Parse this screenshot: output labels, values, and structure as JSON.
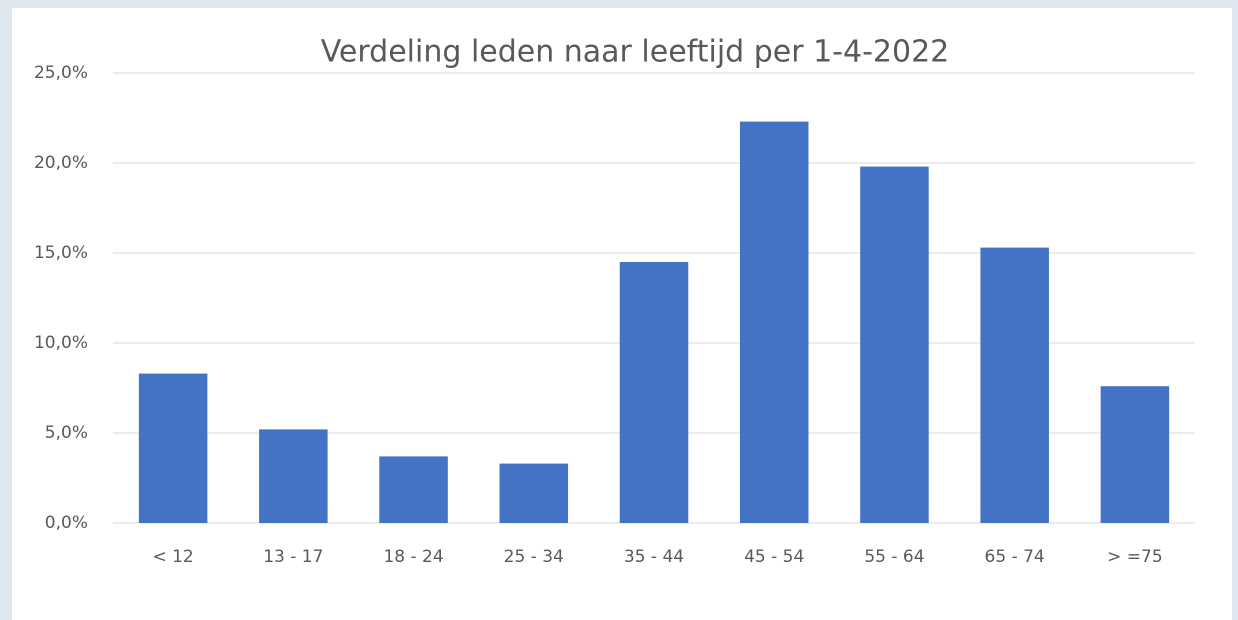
{
  "chart_data": {
    "type": "bar",
    "title": "Verdeling leden naar leeftijd per 1-4-2022",
    "categories": [
      "< 12",
      "13 - 17",
      "18 - 24",
      "25 - 34",
      "35 - 44",
      "45 - 54",
      "55 - 64",
      "65 - 74",
      "> =75"
    ],
    "values": [
      8.3,
      5.2,
      3.7,
      3.3,
      14.5,
      22.3,
      19.8,
      15.3,
      7.6
    ],
    "color": "#4472c4",
    "ylim": [
      0,
      25
    ],
    "yticks": [
      {
        "value": 0,
        "label": "0,0%"
      },
      {
        "value": 5,
        "label": "5,0%"
      },
      {
        "value": 10,
        "label": "10,0%"
      },
      {
        "value": 15,
        "label": "15,0%"
      },
      {
        "value": 20,
        "label": "20,0%"
      },
      {
        "value": 25,
        "label": "25,0%"
      }
    ],
    "grid": true
  }
}
